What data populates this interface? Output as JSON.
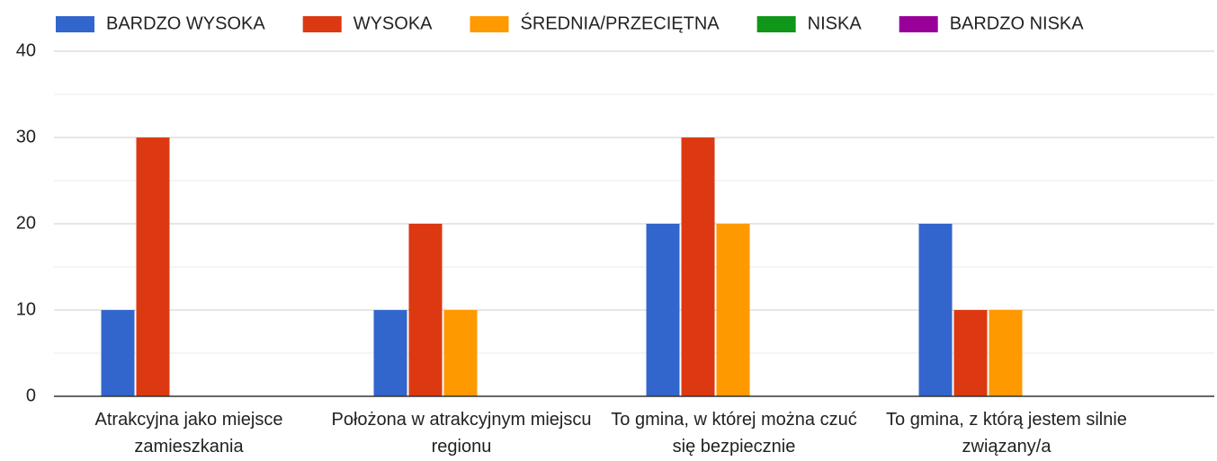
{
  "chart_data": {
    "type": "bar",
    "categories": [
      "Atrakcyjna jako miejsce zamieszkania",
      "Położona w atrakcyjnym miejscu regionu",
      "To gmina, w której można czuć się bezpiecznie",
      "To gmina, z którą jestem silnie związany/a"
    ],
    "series": [
      {
        "name": "BARDZO WYSOKA",
        "color": "#3366cc",
        "values": [
          10,
          10,
          20,
          20
        ]
      },
      {
        "name": "WYSOKA",
        "color": "#dc3912",
        "values": [
          30,
          20,
          30,
          10
        ]
      },
      {
        "name": "ŚREDNIA/PRZECIĘTNA",
        "color": "#ff9900",
        "values": [
          0,
          10,
          20,
          10
        ]
      },
      {
        "name": "NISKA",
        "color": "#109618",
        "values": [
          0,
          0,
          0,
          0
        ]
      },
      {
        "name": "BARDZO NISKA",
        "color": "#990099",
        "values": [
          0,
          0,
          0,
          0
        ]
      }
    ],
    "ylim": [
      0,
      40
    ],
    "yticks": [
      0,
      10,
      20,
      30,
      40
    ],
    "grid": true,
    "legend": "top"
  }
}
